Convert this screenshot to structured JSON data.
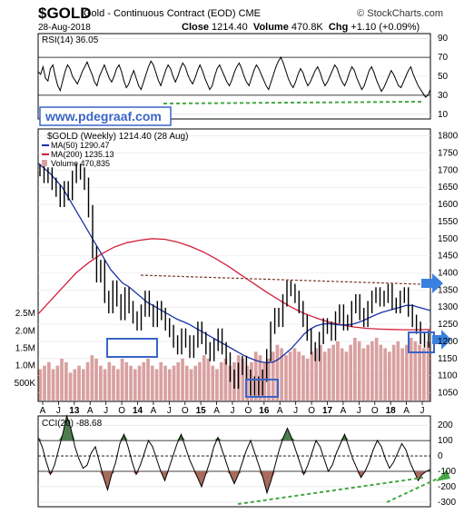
{
  "header": {
    "symbol": "$GOLD",
    "description": "Gold - Continuous Contract (EOD)",
    "exchange": "CME",
    "date": "28-Aug-2018",
    "close_label": "Close",
    "close_value": "1214.40",
    "volume_label": "Volume",
    "volume_value": "470.8K",
    "chg_label": "Chg",
    "chg_value": "+1.10 (+0.09%)",
    "brand": "© StockCharts.com"
  },
  "watermark": "www.pdegraaf.com",
  "colors": {
    "price_bar": "#000000",
    "ma50": "#1a33a6",
    "ma200": "#d31f3c",
    "volume": "#d9a0a0",
    "annotation_green": "#45a845",
    "annotation_blue": "#3a64c8",
    "cci_fill_pos": "#4e7d4e",
    "cci_fill_neg": "#a86b5c"
  },
  "rsi": {
    "legend": "RSI(14) 36.05",
    "ticks": [
      "90",
      "70",
      "50",
      "30",
      "10"
    ],
    "series": [
      55,
      52,
      60,
      48,
      45,
      58,
      62,
      50,
      40,
      35,
      45,
      55,
      62,
      58,
      50,
      46,
      42,
      48,
      55,
      60,
      65,
      58,
      52,
      44,
      40,
      50,
      56,
      62,
      55,
      48,
      44,
      50,
      58,
      62,
      55,
      45,
      38,
      42,
      50,
      56,
      48,
      40,
      36,
      44,
      52,
      60,
      66,
      62,
      54,
      46,
      40,
      48,
      56,
      62,
      58,
      50,
      44,
      50,
      58,
      64,
      60,
      52,
      46,
      42,
      48,
      56,
      62,
      56,
      48,
      42,
      36,
      40,
      50,
      58,
      62,
      56,
      50,
      44,
      40,
      46,
      54,
      60,
      64,
      58,
      50,
      44,
      40,
      48,
      56,
      62,
      58,
      52,
      46,
      40,
      36,
      44,
      52,
      60,
      66,
      70,
      64,
      56,
      48,
      42,
      38,
      44,
      52,
      58,
      54,
      46,
      40,
      44,
      50,
      56,
      60,
      54,
      46,
      40,
      44,
      50,
      56,
      62,
      58,
      50,
      44,
      40,
      46,
      54,
      60,
      56,
      48,
      42,
      36,
      40,
      48,
      56,
      60,
      54,
      46,
      40,
      34,
      38,
      44,
      50,
      56,
      52,
      46,
      40,
      38,
      44,
      50,
      56,
      60,
      52,
      46,
      40,
      36,
      32,
      28,
      30,
      36
    ]
  },
  "chart_data": {
    "type": "line",
    "title": "$GOLD (Weekly) 1214.40 (28 Aug)",
    "legend": {
      "ma50": "MA(50) 1290.47",
      "ma200": "MA(200) 1235.13",
      "volume": "Volume 470,835"
    },
    "ylim": [
      1025,
      1820
    ],
    "y_ticks": [
      "1800",
      "1750",
      "1700",
      "1650",
      "1600",
      "1550",
      "1500",
      "1450",
      "1400",
      "1350",
      "1300",
      "1250",
      "1200",
      "1150",
      "1100",
      "1050"
    ],
    "volume_ticks": [
      "2.5M",
      "2.0M",
      "1.5M",
      "1.0M",
      "500K"
    ],
    "x_ticks": [
      "A",
      "J",
      "13",
      "A",
      "J",
      "O",
      "14",
      "A",
      "J",
      "O",
      "15",
      "A",
      "J",
      "O",
      "16",
      "A",
      "J",
      "O",
      "17",
      "A",
      "J",
      "O",
      "18",
      "A",
      "J"
    ],
    "price": [
      1700,
      1680,
      1690,
      1660,
      1640,
      1610,
      1650,
      1630,
      1680,
      1700,
      1690,
      1660,
      1580,
      1460,
      1390,
      1420,
      1330,
      1300,
      1360,
      1320,
      1280,
      1340,
      1300,
      1270,
      1250,
      1290,
      1330,
      1290,
      1260,
      1300,
      1280,
      1250,
      1230,
      1200,
      1180,
      1220,
      1200,
      1170,
      1200,
      1240,
      1210,
      1180,
      1160,
      1190,
      1220,
      1180,
      1150,
      1100,
      1080,
      1120,
      1140,
      1100,
      1060,
      1080,
      1060,
      1100,
      1160,
      1240,
      1280,
      1260,
      1320,
      1360,
      1350,
      1330,
      1300,
      1260,
      1220,
      1180,
      1160,
      1210,
      1250,
      1240,
      1220,
      1270,
      1290,
      1250,
      1260,
      1300,
      1320,
      1280,
      1260,
      1300,
      1330,
      1340,
      1320,
      1330,
      1350,
      1310,
      1300,
      1330,
      1340,
      1290,
      1260,
      1240,
      1210,
      1200,
      1214
    ],
    "ma50": [
      1720,
      1705,
      1690,
      1670,
      1650,
      1620,
      1590,
      1560,
      1530,
      1500,
      1470,
      1440,
      1410,
      1390,
      1370,
      1360,
      1345,
      1330,
      1315,
      1305,
      1295,
      1285,
      1275,
      1265,
      1258,
      1250,
      1240,
      1230,
      1220,
      1210,
      1200,
      1190,
      1180,
      1170,
      1160,
      1152,
      1145,
      1140,
      1138,
      1140,
      1150,
      1165,
      1180,
      1200,
      1220,
      1235,
      1245,
      1250,
      1252,
      1250,
      1248,
      1248,
      1250,
      1255,
      1262,
      1270,
      1278,
      1285,
      1290,
      1295,
      1300,
      1305,
      1305,
      1300,
      1295,
      1290
    ],
    "ma200": [
      1280,
      1320,
      1360,
      1400,
      1430,
      1455,
      1475,
      1488,
      1495,
      1500,
      1498,
      1490,
      1478,
      1462,
      1442,
      1420,
      1395,
      1370,
      1345,
      1322,
      1300,
      1282,
      1268,
      1256,
      1248,
      1242,
      1238,
      1236,
      1235,
      1234,
      1234,
      1235
    ],
    "volume": [
      0.9,
      1.0,
      1.1,
      0.9,
      1.0,
      1.2,
      1.1,
      0.8,
      0.9,
      1.0,
      0.9,
      1.1,
      1.3,
      1.2,
      1.0,
      0.9,
      1.1,
      1.0,
      0.9,
      1.2,
      1.1,
      1.0,
      0.9,
      1.0,
      1.1,
      1.2,
      1.0,
      0.9,
      1.1,
      1.0,
      0.9,
      1.0,
      1.1,
      1.2,
      1.0,
      0.9,
      1.0,
      1.1,
      1.3,
      1.2,
      1.0,
      0.9,
      1.1,
      1.2,
      1.0,
      1.1,
      1.3,
      1.2,
      1.0,
      1.1,
      1.4,
      1.3,
      1.1,
      1.2,
      1.4,
      1.6,
      1.5,
      1.3,
      1.4,
      1.5,
      1.4,
      1.3,
      1.2,
      1.4,
      1.5,
      1.6,
      1.4,
      1.5,
      1.6,
      1.7,
      1.5,
      1.4,
      1.6,
      1.8,
      1.7,
      1.5,
      1.6,
      1.7,
      1.8,
      1.6,
      1.5,
      1.4,
      1.6,
      1.7,
      1.5,
      1.6,
      1.8,
      1.7,
      1.6,
      1.5,
      1.7
    ]
  },
  "cci": {
    "legend": "CCI(20) -88.68",
    "ticks": [
      "200",
      "100",
      "0",
      "-100",
      "-200",
      "-300"
    ],
    "series": [
      120,
      60,
      -40,
      -120,
      -60,
      40,
      140,
      260,
      180,
      60,
      -20,
      -80,
      -60,
      20,
      60,
      -40,
      -140,
      -220,
      -120,
      -40,
      80,
      140,
      60,
      -40,
      -120,
      -60,
      20,
      100,
      60,
      -20,
      -100,
      -160,
      -80,
      0,
      80,
      140,
      60,
      -20,
      -80,
      -140,
      -200,
      -120,
      -40,
      60,
      120,
      40,
      -40,
      -120,
      -180,
      -120,
      -40,
      40,
      100,
      20,
      -60,
      -140,
      -240,
      -160,
      -60,
      40,
      120,
      180,
      120,
      40,
      -40,
      -120,
      -60,
      20,
      100,
      60,
      -20,
      -100,
      -60,
      20,
      80,
      140,
      60,
      -20,
      -80,
      -140,
      -100,
      -40,
      40,
      100,
      60,
      -20,
      -80,
      -40,
      20,
      80,
      40,
      -40,
      -100,
      -160,
      -120,
      -100,
      -88
    ]
  }
}
